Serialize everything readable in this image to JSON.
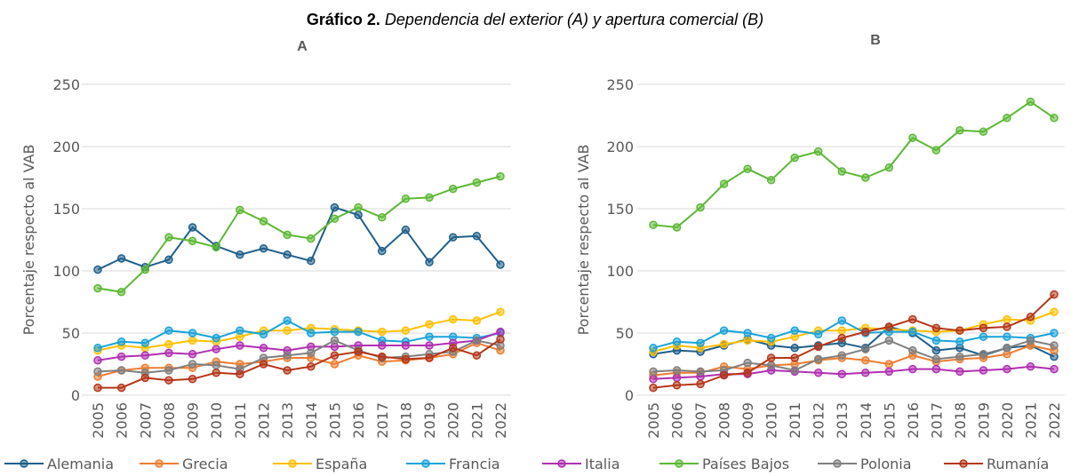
{
  "title": {
    "label": "Gráfico 2.",
    "text": "Dependencia del exterior (A) y apertura comercial (B)"
  },
  "chart_data": [
    {
      "type": "line",
      "title": "A",
      "y_label": "Porcentaje respecto al VAB",
      "categories": [
        "2005",
        "2006",
        "2007",
        "2008",
        "2009",
        "2010",
        "2011",
        "2012",
        "2013",
        "2014",
        "2015",
        "2016",
        "2017",
        "2018",
        "2019",
        "2020",
        "2021",
        "2022"
      ],
      "ylim": [
        0,
        250
      ],
      "yticks": [
        0,
        50,
        100,
        150,
        200,
        250
      ],
      "grid": true,
      "series": [
        {
          "name": "Alemania",
          "color": "#1f5f8b",
          "values": [
            101,
            110,
            103,
            109,
            135,
            120,
            113,
            118,
            113,
            108,
            151,
            145,
            116,
            133,
            107,
            127,
            128,
            105
          ]
        },
        {
          "name": "Grecia",
          "color": "#ed7d31",
          "values": [
            15,
            20,
            22,
            22,
            22,
            27,
            25,
            27,
            30,
            30,
            25,
            32,
            27,
            28,
            30,
            33,
            42,
            36
          ]
        },
        {
          "name": "España",
          "color": "#ffc000",
          "values": [
            36,
            40,
            38,
            41,
            44,
            43,
            47,
            52,
            52,
            54,
            53,
            52,
            51,
            52,
            57,
            61,
            60,
            67
          ]
        },
        {
          "name": "Francia",
          "color": "#1aa3d9",
          "values": [
            38,
            43,
            42,
            52,
            50,
            46,
            52,
            49,
            60,
            50,
            51,
            51,
            44,
            43,
            47,
            47,
            46,
            50
          ]
        },
        {
          "name": "Italia",
          "color": "#b030b0",
          "values": [
            28,
            31,
            32,
            34,
            33,
            37,
            40,
            38,
            36,
            39,
            39,
            40,
            40,
            40,
            40,
            42,
            44,
            51
          ]
        },
        {
          "name": "Países Bajos",
          "color": "#5db835",
          "values": [
            86,
            83,
            101,
            127,
            124,
            119,
            149,
            140,
            129,
            126,
            142,
            151,
            143,
            158,
            159,
            166,
            171,
            176
          ]
        },
        {
          "name": "Polonia",
          "color": "#7f7f7f",
          "values": [
            19,
            20,
            18,
            20,
            25,
            24,
            21,
            30,
            32,
            34,
            44,
            36,
            30,
            31,
            33,
            35,
            44,
            40
          ]
        },
        {
          "name": "Rumanía",
          "color": "#b5361a",
          "values": [
            6,
            6,
            14,
            12,
            13,
            18,
            17,
            25,
            20,
            23,
            32,
            35,
            31,
            29,
            30,
            38,
            32,
            45
          ]
        }
      ]
    },
    {
      "type": "line",
      "title": "B",
      "y_label": "Porcentaje respecto al VAB",
      "categories": [
        "2005",
        "2006",
        "2007",
        "2008",
        "2009",
        "2010",
        "2011",
        "2012",
        "2013",
        "2014",
        "2015",
        "2016",
        "2017",
        "2018",
        "2019",
        "2020",
        "2021",
        "2022"
      ],
      "ylim": [
        0,
        250
      ],
      "yticks": [
        0,
        50,
        100,
        150,
        200,
        250
      ],
      "grid": true,
      "series": [
        {
          "name": "Alemania",
          "color": "#1f5f8b",
          "values": [
            33,
            36,
            35,
            40,
            45,
            40,
            38,
            40,
            42,
            38,
            55,
            50,
            36,
            38,
            32,
            38,
            40,
            31
          ]
        },
        {
          "name": "Grecia",
          "color": "#ed7d31",
          "values": [
            16,
            18,
            18,
            23,
            21,
            24,
            25,
            28,
            30,
            28,
            25,
            32,
            27,
            29,
            30,
            33,
            40,
            36
          ]
        },
        {
          "name": "España",
          "color": "#ffc000",
          "values": [
            35,
            40,
            38,
            41,
            44,
            43,
            47,
            52,
            52,
            54,
            53,
            52,
            51,
            52,
            57,
            61,
            60,
            67
          ]
        },
        {
          "name": "Francia",
          "color": "#1aa3d9",
          "values": [
            38,
            43,
            42,
            52,
            50,
            46,
            52,
            49,
            60,
            50,
            51,
            51,
            44,
            43,
            47,
            47,
            46,
            50
          ]
        },
        {
          "name": "Italia",
          "color": "#b030b0",
          "values": [
            13,
            14,
            15,
            17,
            17,
            20,
            19,
            18,
            17,
            18,
            19,
            21,
            21,
            19,
            20,
            21,
            23,
            21
          ]
        },
        {
          "name": "Países Bajos",
          "color": "#5db835",
          "values": [
            137,
            135,
            151,
            170,
            182,
            173,
            191,
            196,
            180,
            175,
            183,
            207,
            197,
            213,
            212,
            223,
            236,
            223
          ]
        },
        {
          "name": "Polonia",
          "color": "#7f7f7f",
          "values": [
            19,
            20,
            19,
            20,
            26,
            24,
            20,
            29,
            32,
            37,
            44,
            36,
            29,
            31,
            33,
            38,
            44,
            40
          ]
        },
        {
          "name": "Rumanía",
          "color": "#b5361a",
          "values": [
            6,
            8,
            9,
            16,
            18,
            30,
            30,
            39,
            46,
            51,
            55,
            61,
            54,
            52,
            54,
            55,
            63,
            81
          ]
        }
      ]
    }
  ]
}
